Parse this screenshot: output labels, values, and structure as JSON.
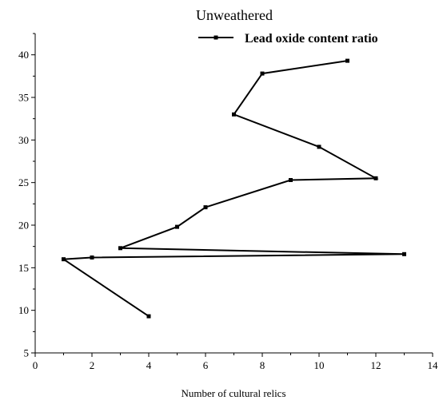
{
  "chart_data": {
    "type": "line",
    "title": "Unweathered",
    "xlabel": "Number of cultural relics",
    "ylabel": "",
    "xlim": [
      0,
      14
    ],
    "ylim": [
      5,
      42.5
    ],
    "x_ticks": [
      "0",
      "2",
      "4",
      "6",
      "8",
      "10",
      "12",
      "14"
    ],
    "y_ticks": [
      "5",
      "10",
      "15",
      "20",
      "25",
      "30",
      "35",
      "40"
    ],
    "legend_position": "top-right",
    "series": [
      {
        "name": "Lead oxide content ratio",
        "color": "#000000",
        "marker": "square",
        "points": [
          {
            "x": 4,
            "y": 9.3
          },
          {
            "x": 1,
            "y": 16.0
          },
          {
            "x": 2,
            "y": 16.2
          },
          {
            "x": 13,
            "y": 16.6
          },
          {
            "x": 3,
            "y": 17.3
          },
          {
            "x": 5,
            "y": 19.8
          },
          {
            "x": 6,
            "y": 22.1
          },
          {
            "x": 9,
            "y": 25.3
          },
          {
            "x": 12,
            "y": 25.5
          },
          {
            "x": 10,
            "y": 29.2
          },
          {
            "x": 7,
            "y": 33.0
          },
          {
            "x": 8,
            "y": 37.8
          },
          {
            "x": 11,
            "y": 39.3
          }
        ]
      }
    ]
  }
}
